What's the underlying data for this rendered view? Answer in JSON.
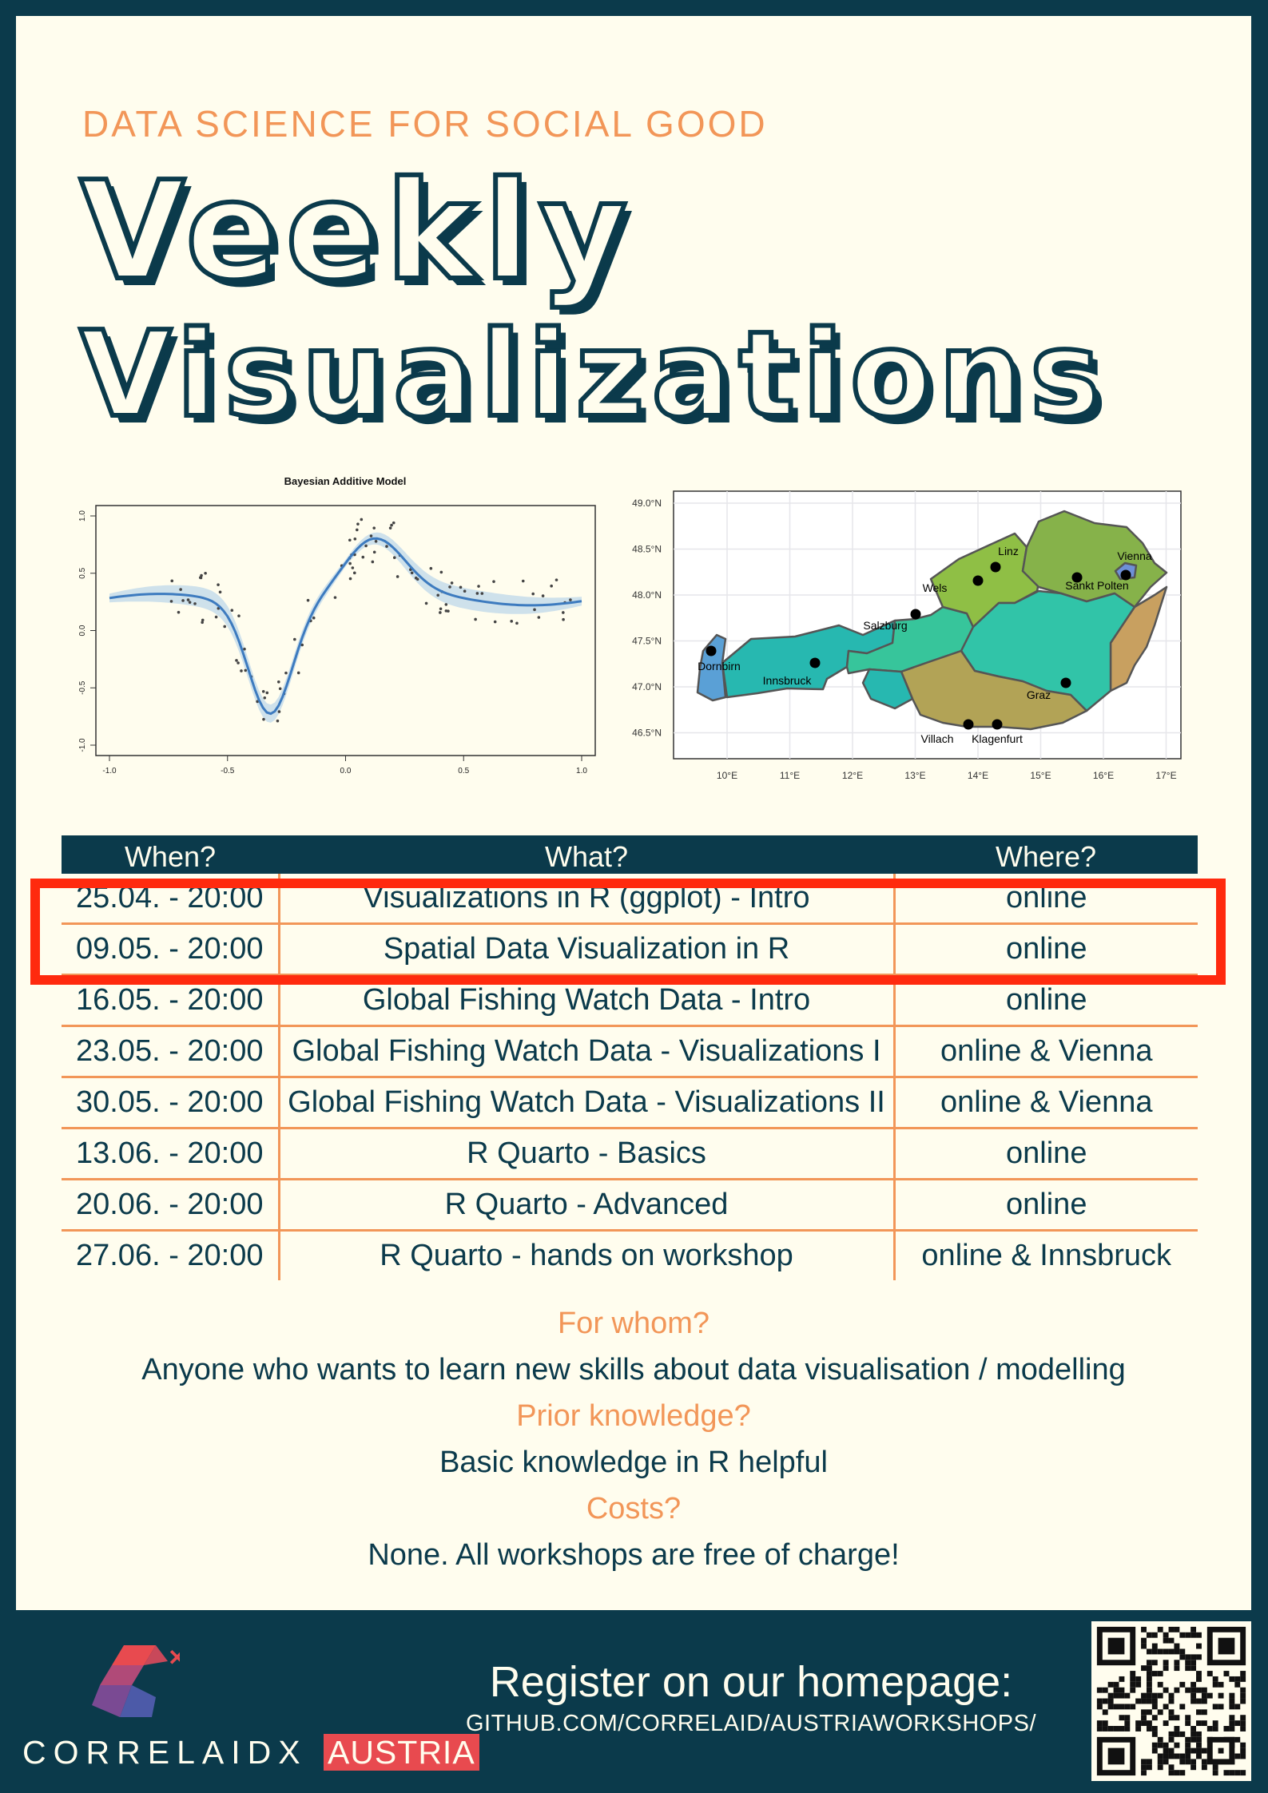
{
  "header": {
    "kicker": "DATA SCIENCE FOR SOCIAL GOOD",
    "title_line1": "Veekly",
    "title_line2": "Visualizations"
  },
  "plot_left": {
    "title": "Bayesian Additive Model",
    "x_ticks": [
      "-1.0",
      "-0.5",
      "0.0",
      "0.5",
      "1.0"
    ],
    "y_ticks": [
      "1.0",
      "0.5",
      "0.0",
      "-0.5",
      "-1.0"
    ]
  },
  "map_right": {
    "lat_ticks": [
      "49.0°N",
      "48.5°N",
      "48.0°N",
      "47.5°N",
      "47.0°N",
      "46.5°N"
    ],
    "lon_ticks": [
      "10°E",
      "11°E",
      "12°E",
      "13°E",
      "14°E",
      "15°E",
      "16°E",
      "17°E"
    ],
    "cities": [
      "Linz",
      "Vienna",
      "Wels",
      "Sankt Polten",
      "Salzburg",
      "Dornbirn",
      "Innsbruck",
      "Graz",
      "Villach",
      "Klagenfurt"
    ]
  },
  "schedule": {
    "headers": [
      "When?",
      "What?",
      "Where?"
    ],
    "rows": [
      {
        "when": "25.04. - 20:00",
        "what": "Visualizations in R (ggplot) - Intro",
        "where": "online"
      },
      {
        "when": "09.05. - 20:00",
        "what": "Spatial Data Visualization in R",
        "where": "online"
      },
      {
        "when": "16.05. - 20:00",
        "what": "Global Fishing Watch Data - Intro",
        "where": "online"
      },
      {
        "when": "23.05. - 20:00",
        "what": "Global Fishing Watch Data - Visualizations I",
        "where": "online & Vienna"
      },
      {
        "when": "30.05. - 20:00",
        "what": "Global Fishing Watch Data - Visualizations II",
        "where": "online & Vienna"
      },
      {
        "when": "13.06. - 20:00",
        "what": "R Quarto - Basics",
        "where": "online"
      },
      {
        "when": "20.06. - 20:00",
        "what": "R Quarto - Advanced",
        "where": "online"
      },
      {
        "when": "27.06. - 20:00",
        "what": "R Quarto - hands on workshop",
        "where": "online & Innsbruck"
      }
    ]
  },
  "faq": {
    "q1": "For whom?",
    "a1": "Anyone who wants to learn new skills about data visualisation / modelling",
    "q2": "Prior knowledge?",
    "a2": "Basic knowledge in R helpful",
    "q3": "Costs?",
    "a3": "None. All workshops are free of charge!"
  },
  "footer": {
    "logo_text": "CORRELAIDX",
    "logo_tag": "AUSTRIA",
    "register_heading": "Register on our homepage:",
    "register_url": "GITHUB.COM/CORRELAID/AUSTRIAWORKSHOPS/",
    "qr_icon": "qr-code-icon"
  },
  "colors": {
    "navy": "#0b3a4b",
    "cream": "#fffdee",
    "orange": "#f29658",
    "highlight_red": "#ff2a0e",
    "brand_red": "#e84a4f"
  }
}
